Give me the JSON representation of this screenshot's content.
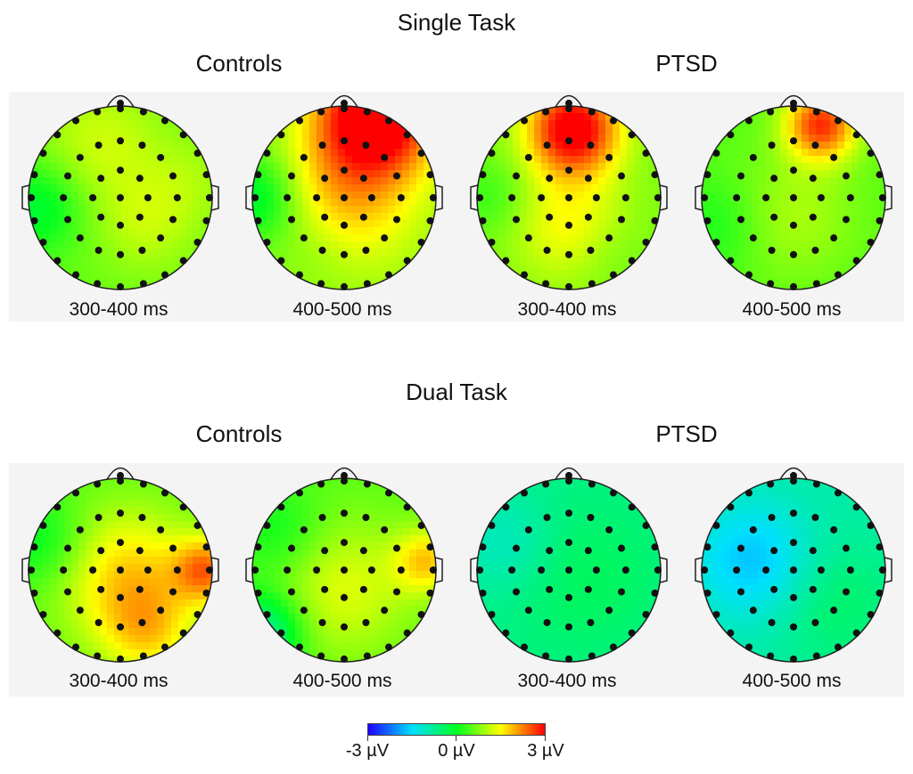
{
  "single_task": {
    "title": "Single Task",
    "groups": [
      "Controls",
      "PTSD"
    ],
    "maps": [
      {
        "group": "Controls",
        "window": "300-400 ms",
        "base": 0.6,
        "blobs": [
          [
            -0.2,
            -0.6,
            0.6,
            0.5
          ],
          [
            0.3,
            0.3,
            0.5,
            0.4
          ],
          [
            -0.9,
            0.1,
            -0.8,
            0.35
          ],
          [
            0.8,
            -0.2,
            0.3,
            0.35
          ]
        ]
      },
      {
        "group": "PTSD",
        "window": "300-400 ms",
        "base": 0.7,
        "blobs": [
          [
            0.05,
            -0.75,
            2.6,
            0.35
          ],
          [
            0.0,
            0.3,
            0.8,
            0.45
          ],
          [
            -0.85,
            0.0,
            -0.4,
            0.3
          ],
          [
            0.4,
            0.6,
            -0.2,
            0.3
          ]
        ]
      },
      {
        "group": "Controls",
        "window": "400-500 ms",
        "base": 0.8,
        "blobs": [
          [
            0.35,
            -0.9,
            2.8,
            0.45
          ],
          [
            0.0,
            0.0,
            1.1,
            0.55
          ],
          [
            -0.95,
            0.0,
            -1.1,
            0.35
          ],
          [
            -0.3,
            0.5,
            -0.3,
            0.35
          ]
        ]
      },
      {
        "group": "PTSD",
        "window": "400-500 ms",
        "base": 0.5,
        "blobs": [
          [
            0.3,
            -0.8,
            2.2,
            0.28
          ],
          [
            0.0,
            0.2,
            0.5,
            0.5
          ],
          [
            -0.8,
            0.3,
            -0.4,
            0.35
          ]
        ]
      }
    ]
  },
  "dual_task": {
    "title": "Dual Task",
    "groups": [
      "Controls",
      "PTSD"
    ],
    "maps": [
      {
        "group": "Controls",
        "window": "300-400 ms",
        "base": 0.5,
        "blobs": [
          [
            0.1,
            0.1,
            1.3,
            0.55
          ],
          [
            0.95,
            0.0,
            1.6,
            0.25
          ],
          [
            -0.85,
            -0.3,
            -0.6,
            0.35
          ],
          [
            0.3,
            0.7,
            0.8,
            0.35
          ]
        ]
      },
      {
        "group": "PTSD",
        "window": "300-400 ms",
        "base": -0.7,
        "blobs": [
          [
            0.2,
            0.1,
            0.3,
            0.6
          ],
          [
            -0.7,
            -0.3,
            -0.4,
            0.4
          ]
        ]
      },
      {
        "group": "Controls",
        "window": "400-500 ms",
        "base": 0.5,
        "blobs": [
          [
            0.0,
            0.2,
            0.8,
            0.55
          ],
          [
            0.9,
            -0.1,
            1.2,
            0.25
          ],
          [
            -0.9,
            0.7,
            -1.5,
            0.3
          ],
          [
            -0.7,
            -0.4,
            -0.5,
            0.35
          ]
        ]
      },
      {
        "group": "PTSD",
        "window": "400-500 ms",
        "base": -0.9,
        "blobs": [
          [
            -0.45,
            -0.1,
            -0.8,
            0.45
          ],
          [
            0.5,
            0.4,
            0.4,
            0.5
          ]
        ]
      }
    ]
  },
  "colorbar": {
    "min_label": "-3 µV",
    "mid_label": "0 µV",
    "max_label": "3 µV",
    "range": [
      -3,
      3
    ],
    "colors": [
      "#1e00ff",
      "#00e0ff",
      "#00ff20",
      "#ffff00",
      "#ff0000"
    ]
  }
}
